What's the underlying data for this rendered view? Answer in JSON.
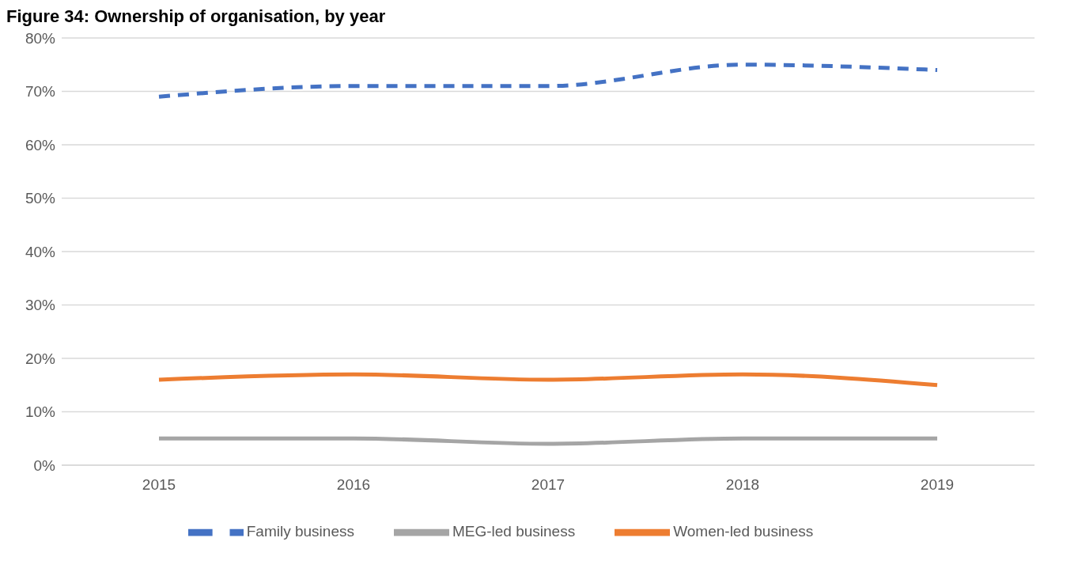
{
  "chart_data": {
    "type": "line",
    "title": "Figure 34: Ownership of organisation, by year",
    "categories": [
      "2015",
      "2016",
      "2017",
      "2018",
      "2019"
    ],
    "series": [
      {
        "name": "Family business",
        "color": "#4472c4",
        "values": [
          0.69,
          0.71,
          0.71,
          0.75,
          0.74
        ],
        "line_style": "dashed"
      },
      {
        "name": "Women-led business",
        "color": "#ed7d31",
        "values": [
          0.16,
          0.17,
          0.16,
          0.17,
          0.15
        ],
        "line_style": "solid"
      },
      {
        "name": "MEG-led business",
        "color": "#a5a5a5",
        "values": [
          0.05,
          0.05,
          0.04,
          0.05,
          0.05
        ],
        "line_style": "solid"
      }
    ],
    "ylim": [
      0,
      0.8
    ],
    "yticks": [
      {
        "value": 0,
        "label": "0%"
      },
      {
        "value": 0.1,
        "label": "10%"
      },
      {
        "value": 0.2,
        "label": "20%"
      },
      {
        "value": 0.3,
        "label": "30%"
      },
      {
        "value": 0.4,
        "label": "40%"
      },
      {
        "value": 0.5,
        "label": "50%"
      },
      {
        "value": 0.6,
        "label": "60%"
      },
      {
        "value": 0.7,
        "label": "70%"
      },
      {
        "value": 0.8,
        "label": "80%"
      }
    ],
    "grid": "y",
    "legend": "bottom",
    "marker": "none"
  }
}
